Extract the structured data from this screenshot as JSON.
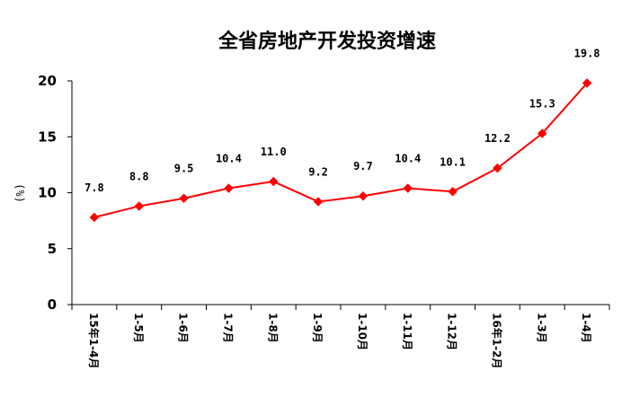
{
  "chart_data": {
    "type": "line",
    "title": "全省房地产开发投资增速",
    "ylabel": "(%)",
    "xlabel": "",
    "ylim": [
      0,
      20
    ],
    "yticks": [
      0,
      5,
      10,
      15,
      20
    ],
    "grid": false,
    "legend": "none",
    "categories": [
      "15年1-4月",
      "1-5月",
      "1-6月",
      "1-7月",
      "1-8月",
      "1-9月",
      "1-10月",
      "1-11月",
      "1-12月",
      "16年1-2月",
      "1-3月",
      "1-4月"
    ],
    "series": [
      {
        "values": [
          7.8,
          8.8,
          9.5,
          10.4,
          11.0,
          9.2,
          9.7,
          10.4,
          10.1,
          12.2,
          15.3,
          19.8
        ],
        "color": "#ff0000",
        "marker": "diamond"
      }
    ],
    "data_labels": [
      "7.8",
      "8.8",
      "9.5",
      "10.4",
      "11.0",
      "9.2",
      "9.7",
      "10.4",
      "10.1",
      "12.2",
      "15.3",
      "19.8"
    ]
  }
}
